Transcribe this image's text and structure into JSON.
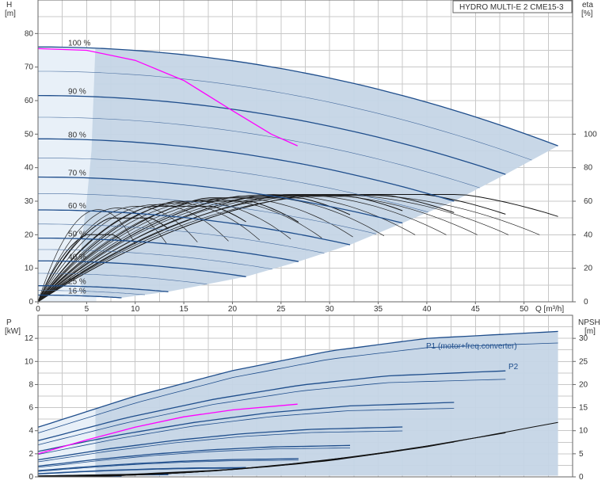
{
  "chart_data": [
    {
      "type": "line",
      "title": "HYDRO MULTI-E 2 CME15-3",
      "x_label": "Q [m³/h]",
      "xlim": [
        0,
        55
      ],
      "x_ticks": [
        0,
        5,
        10,
        15,
        20,
        25,
        30,
        35,
        40,
        45,
        50
      ],
      "y_left_label_top": "H",
      "y_left_label_unit": "[m]",
      "y_left_lim": [
        0,
        90
      ],
      "y_left_ticks": [
        0,
        10,
        20,
        30,
        40,
        50,
        60,
        70,
        80
      ],
      "y_right_label_top": "eta",
      "y_right_label_unit": "[%]",
      "y_right_lim": [
        0,
        180
      ],
      "y_right_ticks": [
        0,
        20,
        40,
        60,
        80,
        100
      ],
      "grid": true,
      "speed_curves": [
        {
          "label": "100 %",
          "h0": 76,
          "qmax": 53.5,
          "hend": 46.5
        },
        {
          "label": "90 %",
          "h0": 61.5,
          "qmax": 48.1,
          "hend": 38
        },
        {
          "label": "80 %",
          "h0": 48.6,
          "qmax": 42.8,
          "hend": 30
        },
        {
          "label": "70 %",
          "h0": 37.2,
          "qmax": 37.5,
          "hend": 23.5
        },
        {
          "label": "60 %",
          "h0": 27.4,
          "qmax": 32.1,
          "hend": 17
        },
        {
          "label": "50 %",
          "h0": 19,
          "qmax": 26.8,
          "hend": 12
        },
        {
          "label": "40 %",
          "h0": 12.2,
          "qmax": 21.4,
          "hend": 7.5
        },
        {
          "label": "25 %",
          "h0": 4.8,
          "qmax": 13.4,
          "hend": 3
        },
        {
          "label": "16 %",
          "h0": 2,
          "qmax": 8.6,
          "hend": 1.2
        }
      ],
      "highlight_curve": {
        "color": "#ff00ff",
        "q": [
          0,
          5,
          10,
          15,
          20,
          24,
          26.7
        ],
        "h": [
          75.5,
          75,
          72,
          66,
          57,
          50,
          46.5
        ]
      },
      "operating_envelope_color": "#c5d5e6"
    },
    {
      "type": "line",
      "x_label": "",
      "xlim": [
        0,
        55
      ],
      "y_left_label_top": "P",
      "y_left_label_unit": "[kW]",
      "y_left_lim": [
        0,
        14
      ],
      "y_left_ticks": [
        0,
        2,
        4,
        6,
        8,
        10,
        12
      ],
      "y_right_label_top": "NPSH",
      "y_right_label_unit": "[m]",
      "y_right_lim": [
        0,
        35
      ],
      "y_right_ticks": [
        0,
        5,
        10,
        15,
        20,
        25,
        30
      ],
      "grid": true,
      "annotations": [
        "P1 (motor+freq.converter)",
        "P2"
      ],
      "p1_curve": {
        "q": [
          0,
          10,
          20,
          30,
          40,
          53.5
        ],
        "p": [
          4.3,
          7.0,
          9.2,
          10.9,
          12.0,
          12.6
        ]
      },
      "p2_curve": {
        "q": [
          0,
          10,
          20,
          30,
          40,
          53.5
        ],
        "p": [
          3.8,
          6.4,
          8.6,
          10.2,
          11.2,
          11.6
        ]
      },
      "highlight_curve": {
        "color": "#ff00ff",
        "q": [
          0,
          5,
          10,
          15,
          20,
          26.7
        ],
        "p": [
          2.0,
          3.2,
          4.3,
          5.2,
          5.8,
          6.3
        ]
      },
      "npsh_curve": {
        "q": [
          0,
          10,
          20,
          30,
          40,
          53.5
        ],
        "npsh": [
          0.2,
          0.6,
          1.6,
          3.5,
          6.5,
          11.8
        ]
      }
    }
  ]
}
